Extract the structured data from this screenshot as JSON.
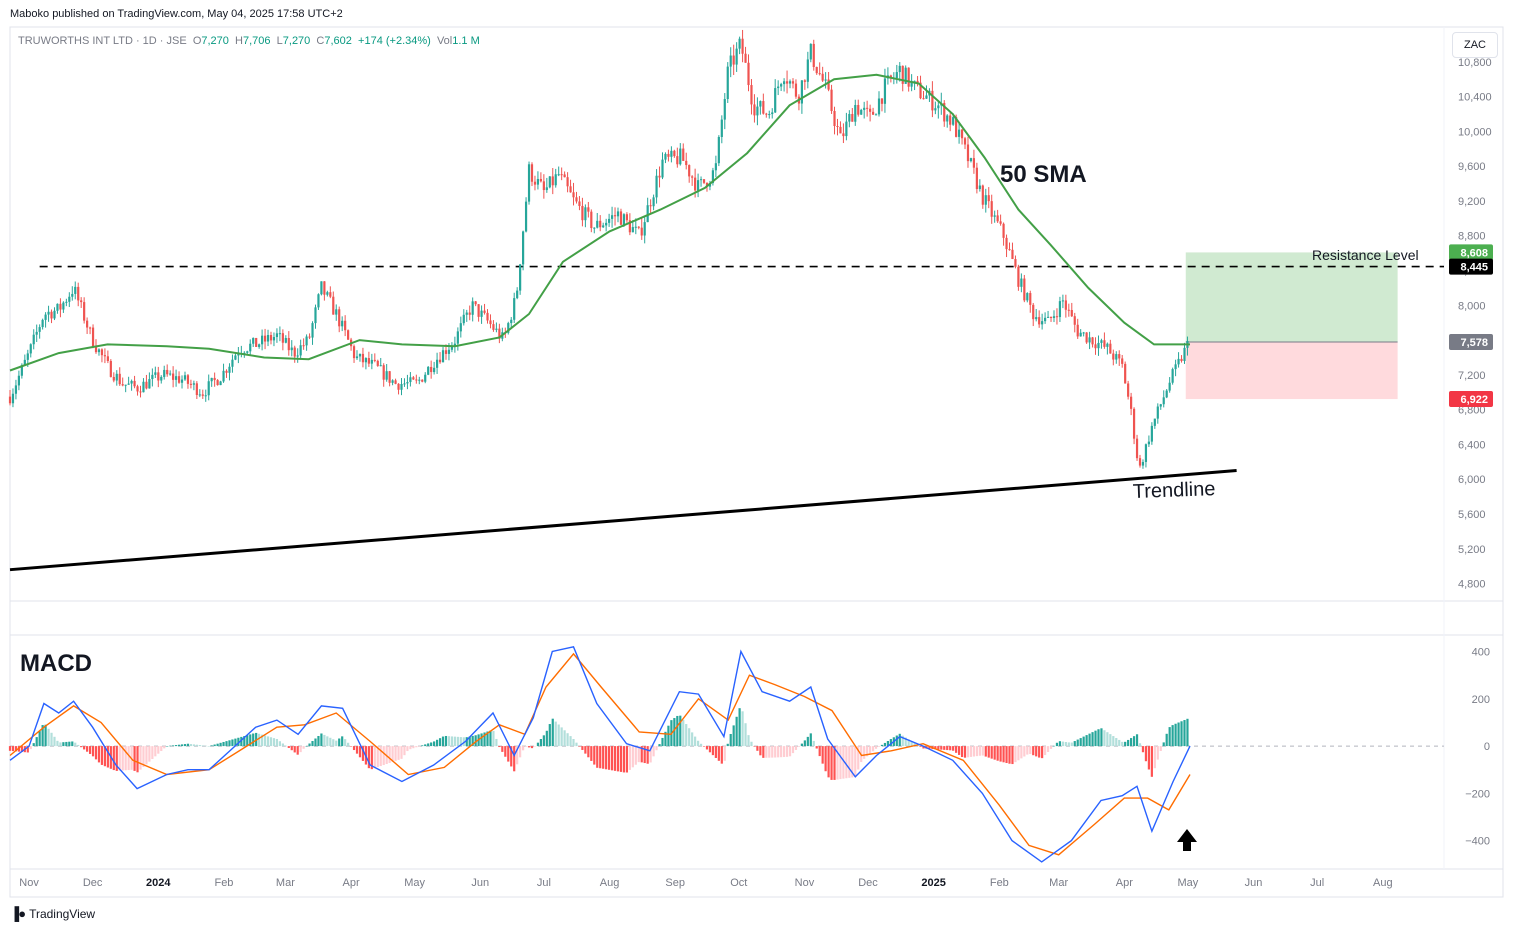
{
  "header": {
    "published": "Maboko published on TradingView.com, May 04, 2025 17:58 UTC+2"
  },
  "legend": {
    "symbol": "TRUWORTHS INT LTD · 1D · JSE",
    "o_label": "O",
    "o": "7,270",
    "h_label": "H",
    "h": "7,706",
    "l_label": "L",
    "l": "7,270",
    "c_label": "C",
    "c": "7,602",
    "change": "+174 (+2.34%)",
    "vol_label": "Vol",
    "vol": "1.1 M"
  },
  "currency_button": "ZAC",
  "footer": {
    "brand": "TradingView",
    "logo": "tv-logo-icon"
  },
  "colors": {
    "up": "#26a69a",
    "down": "#ef5350",
    "sma": "#43a047",
    "macd": "#2962ff",
    "signal": "#ff6d00",
    "grid": "#e0e3eb",
    "text": "#131722",
    "axis_text": "#787b86"
  },
  "chart_data": [
    {
      "type": "candlestick",
      "title": "",
      "price_axis_ticks": [
        4800,
        5200,
        5600,
        6000,
        6400,
        6800,
        7200,
        7600,
        8000,
        8400,
        8800,
        9200,
        9600,
        10000,
        10400,
        10800
      ],
      "price_tick_labels": [
        "4,800",
        "5,200",
        "5,600",
        "6,000",
        "6,400",
        "6,800",
        "7,200",
        "7,600",
        "8,000",
        "8,400",
        "8,800",
        "9,200",
        "9,600",
        "10,000",
        "10,400",
        "10,800"
      ],
      "ylim": [
        4600,
        11200
      ],
      "x_axis_labels": [
        "Nov",
        "Dec",
        "2024",
        "Feb",
        "Mar",
        "Apr",
        "May",
        "Jun",
        "Jul",
        "Aug",
        "Sep",
        "Oct",
        "Nov",
        "Dec",
        "2025",
        "Feb",
        "Mar",
        "Apr",
        "May",
        "Jun",
        "Jul",
        "Aug"
      ],
      "x_label_bold": [
        "2024",
        "2025"
      ],
      "close_path": [
        [
          "2023-10-23",
          6950
        ],
        [
          "2023-11-01",
          7450
        ],
        [
          "2023-11-08",
          7900
        ],
        [
          "2023-11-15",
          7950
        ],
        [
          "2023-11-22",
          8200
        ],
        [
          "2023-12-01",
          7600
        ],
        [
          "2023-12-08",
          7300
        ],
        [
          "2023-12-15",
          7100
        ],
        [
          "2023-12-22",
          7050
        ],
        [
          "2024-01-03",
          7200
        ],
        [
          "2024-01-12",
          7150
        ],
        [
          "2024-01-22",
          7000
        ],
        [
          "2024-01-31",
          7200
        ],
        [
          "2024-02-08",
          7500
        ],
        [
          "2024-02-16",
          7550
        ],
        [
          "2024-02-26",
          7650
        ],
        [
          "2024-03-05",
          7450
        ],
        [
          "2024-03-12",
          7600
        ],
        [
          "2024-03-18",
          8200
        ],
        [
          "2024-03-25",
          7900
        ],
        [
          "2024-04-03",
          7400
        ],
        [
          "2024-04-12",
          7300
        ],
        [
          "2024-04-22",
          7100
        ],
        [
          "2024-05-02",
          7100
        ],
        [
          "2024-05-10",
          7350
        ],
        [
          "2024-05-20",
          7600
        ],
        [
          "2024-05-28",
          8000
        ],
        [
          "2024-06-05",
          7800
        ],
        [
          "2024-06-12",
          7600
        ],
        [
          "2024-06-18",
          8100
        ],
        [
          "2024-06-24",
          9550
        ],
        [
          "2024-07-01",
          9300
        ],
        [
          "2024-07-08",
          9500
        ],
        [
          "2024-07-15",
          9200
        ],
        [
          "2024-07-25",
          8900
        ],
        [
          "2024-08-05",
          9050
        ],
        [
          "2024-08-15",
          8800
        ],
        [
          "2024-08-26",
          9650
        ],
        [
          "2024-09-04",
          9700
        ],
        [
          "2024-09-12",
          9350
        ],
        [
          "2024-09-20",
          9550
        ],
        [
          "2024-09-26",
          10700
        ],
        [
          "2024-10-02",
          11000
        ],
        [
          "2024-10-08",
          10300
        ],
        [
          "2024-10-15",
          10200
        ],
        [
          "2024-10-22",
          10700
        ],
        [
          "2024-10-29",
          10400
        ],
        [
          "2024-11-04",
          10900
        ],
        [
          "2024-11-11",
          10500
        ],
        [
          "2024-11-18",
          9900
        ],
        [
          "2024-11-25",
          10300
        ],
        [
          "2024-12-02",
          10150
        ],
        [
          "2024-12-09",
          10500
        ],
        [
          "2024-12-16",
          10700
        ],
        [
          "2024-12-23",
          10500
        ],
        [
          "2025-01-03",
          10300
        ],
        [
          "2025-01-10",
          10100
        ],
        [
          "2025-01-17",
          9700
        ],
        [
          "2025-01-24",
          9250
        ],
        [
          "2025-02-03",
          8800
        ],
        [
          "2025-02-10",
          8300
        ],
        [
          "2025-02-17",
          7900
        ],
        [
          "2025-02-24",
          7800
        ],
        [
          "2025-03-03",
          8050
        ],
        [
          "2025-03-10",
          7700
        ],
        [
          "2025-03-17",
          7600
        ],
        [
          "2025-03-24",
          7500
        ],
        [
          "2025-03-31",
          7300
        ],
        [
          "2025-04-04",
          6800
        ],
        [
          "2025-04-08",
          6100
        ],
        [
          "2025-04-14",
          6600
        ],
        [
          "2025-04-22",
          7100
        ],
        [
          "2025-04-28",
          7400
        ],
        [
          "2025-05-02",
          7602
        ]
      ],
      "sma50_path": [
        [
          "2023-10-23",
          7250
        ],
        [
          "2023-11-15",
          7450
        ],
        [
          "2023-12-08",
          7550
        ],
        [
          "2024-01-05",
          7530
        ],
        [
          "2024-01-25",
          7500
        ],
        [
          "2024-02-20",
          7400
        ],
        [
          "2024-03-12",
          7380
        ],
        [
          "2024-04-05",
          7600
        ],
        [
          "2024-04-25",
          7550
        ],
        [
          "2024-05-20",
          7530
        ],
        [
          "2024-06-10",
          7630
        ],
        [
          "2024-06-24",
          7900
        ],
        [
          "2024-07-10",
          8500
        ],
        [
          "2024-08-01",
          8850
        ],
        [
          "2024-08-25",
          9100
        ],
        [
          "2024-09-15",
          9350
        ],
        [
          "2024-10-05",
          9750
        ],
        [
          "2024-10-25",
          10300
        ],
        [
          "2024-11-15",
          10600
        ],
        [
          "2024-12-05",
          10650
        ],
        [
          "2024-12-25",
          10550
        ],
        [
          "2025-01-10",
          10200
        ],
        [
          "2025-01-25",
          9700
        ],
        [
          "2025-02-10",
          9100
        ],
        [
          "2025-02-25",
          8700
        ],
        [
          "2025-03-15",
          8200
        ],
        [
          "2025-04-01",
          7800
        ],
        [
          "2025-04-15",
          7550
        ],
        [
          "2025-05-02",
          7550
        ]
      ],
      "sma_label": "50 SMA",
      "resistance": {
        "value": 8445,
        "label": "Resistance Level",
        "price_label": "8,445",
        "start": "2023-11-06",
        "end": "2025-05-20"
      },
      "trendline": {
        "start": [
          "2023-10-23",
          4960
        ],
        "end": [
          "2025-05-24",
          6100
        ],
        "label": "Trendline"
      },
      "position": {
        "start": "2025-04-30",
        "end": "2025-08-08",
        "entry": 7578,
        "target": 8608,
        "stop": 6922,
        "entry_label": "7,578",
        "target_label": "8,608",
        "stop_label": "6,922"
      }
    },
    {
      "type": "macd",
      "title": "MACD",
      "ylim": [
        -520,
        470
      ],
      "axis_ticks": [
        -400,
        -200,
        0,
        200,
        400
      ],
      "axis_tick_labels": [
        "−400",
        "−200",
        "0",
        "200",
        "400"
      ],
      "macd_path": [
        [
          "2023-10-23",
          -60
        ],
        [
          "2023-11-01",
          0
        ],
        [
          "2023-11-08",
          180
        ],
        [
          "2023-11-15",
          140
        ],
        [
          "2023-11-22",
          190
        ],
        [
          "2023-12-01",
          80
        ],
        [
          "2023-12-12",
          -80
        ],
        [
          "2023-12-22",
          -180
        ],
        [
          "2024-01-05",
          -120
        ],
        [
          "2024-01-15",
          -100
        ],
        [
          "2024-01-25",
          -100
        ],
        [
          "2024-02-05",
          -10
        ],
        [
          "2024-02-16",
          80
        ],
        [
          "2024-02-26",
          110
        ],
        [
          "2024-03-07",
          50
        ],
        [
          "2024-03-18",
          170
        ],
        [
          "2024-03-28",
          160
        ],
        [
          "2024-04-10",
          -80
        ],
        [
          "2024-04-25",
          -150
        ],
        [
          "2024-05-10",
          -80
        ],
        [
          "2024-05-25",
          20
        ],
        [
          "2024-06-07",
          140
        ],
        [
          "2024-06-17",
          -40
        ],
        [
          "2024-06-26",
          120
        ],
        [
          "2024-07-05",
          400
        ],
        [
          "2024-07-15",
          420
        ],
        [
          "2024-07-26",
          180
        ],
        [
          "2024-08-09",
          10
        ],
        [
          "2024-08-20",
          -20
        ],
        [
          "2024-09-03",
          230
        ],
        [
          "2024-09-12",
          220
        ],
        [
          "2024-09-24",
          40
        ],
        [
          "2024-10-02",
          400
        ],
        [
          "2024-10-12",
          230
        ],
        [
          "2024-10-25",
          190
        ],
        [
          "2024-11-04",
          250
        ],
        [
          "2024-11-12",
          30
        ],
        [
          "2024-11-25",
          -130
        ],
        [
          "2024-12-05",
          -40
        ],
        [
          "2024-12-16",
          40
        ],
        [
          "2024-12-27",
          0
        ],
        [
          "2025-01-10",
          -60
        ],
        [
          "2025-01-24",
          -200
        ],
        [
          "2025-02-07",
          -400
        ],
        [
          "2025-02-21",
          -490
        ],
        [
          "2025-03-07",
          -400
        ],
        [
          "2025-03-21",
          -230
        ],
        [
          "2025-03-31",
          -210
        ],
        [
          "2025-04-07",
          -170
        ],
        [
          "2025-04-14",
          -360
        ],
        [
          "2025-04-24",
          -150
        ],
        [
          "2025-05-02",
          0
        ]
      ],
      "signal_path": [
        [
          "2023-10-23",
          -40
        ],
        [
          "2023-11-08",
          80
        ],
        [
          "2023-11-22",
          170
        ],
        [
          "2023-12-05",
          100
        ],
        [
          "2023-12-20",
          -60
        ],
        [
          "2024-01-05",
          -120
        ],
        [
          "2024-01-25",
          -100
        ],
        [
          "2024-02-10",
          -10
        ],
        [
          "2024-02-26",
          80
        ],
        [
          "2024-03-10",
          90
        ],
        [
          "2024-03-25",
          140
        ],
        [
          "2024-04-10",
          20
        ],
        [
          "2024-04-28",
          -120
        ],
        [
          "2024-05-15",
          -90
        ],
        [
          "2024-05-30",
          20
        ],
        [
          "2024-06-10",
          90
        ],
        [
          "2024-06-22",
          50
        ],
        [
          "2024-07-02",
          250
        ],
        [
          "2024-07-15",
          390
        ],
        [
          "2024-07-28",
          250
        ],
        [
          "2024-08-15",
          60
        ],
        [
          "2024-08-30",
          50
        ],
        [
          "2024-09-12",
          200
        ],
        [
          "2024-09-26",
          110
        ],
        [
          "2024-10-06",
          300
        ],
        [
          "2024-10-18",
          260
        ],
        [
          "2024-11-01",
          210
        ],
        [
          "2024-11-14",
          150
        ],
        [
          "2024-11-28",
          -40
        ],
        [
          "2024-12-12",
          -20
        ],
        [
          "2024-12-27",
          10
        ],
        [
          "2025-01-15",
          -60
        ],
        [
          "2025-02-01",
          -250
        ],
        [
          "2025-02-15",
          -420
        ],
        [
          "2025-03-01",
          -460
        ],
        [
          "2025-03-18",
          -330
        ],
        [
          "2025-04-01",
          -220
        ],
        [
          "2025-04-12",
          -220
        ],
        [
          "2025-04-22",
          -270
        ],
        [
          "2025-05-02",
          -120
        ]
      ]
    }
  ]
}
